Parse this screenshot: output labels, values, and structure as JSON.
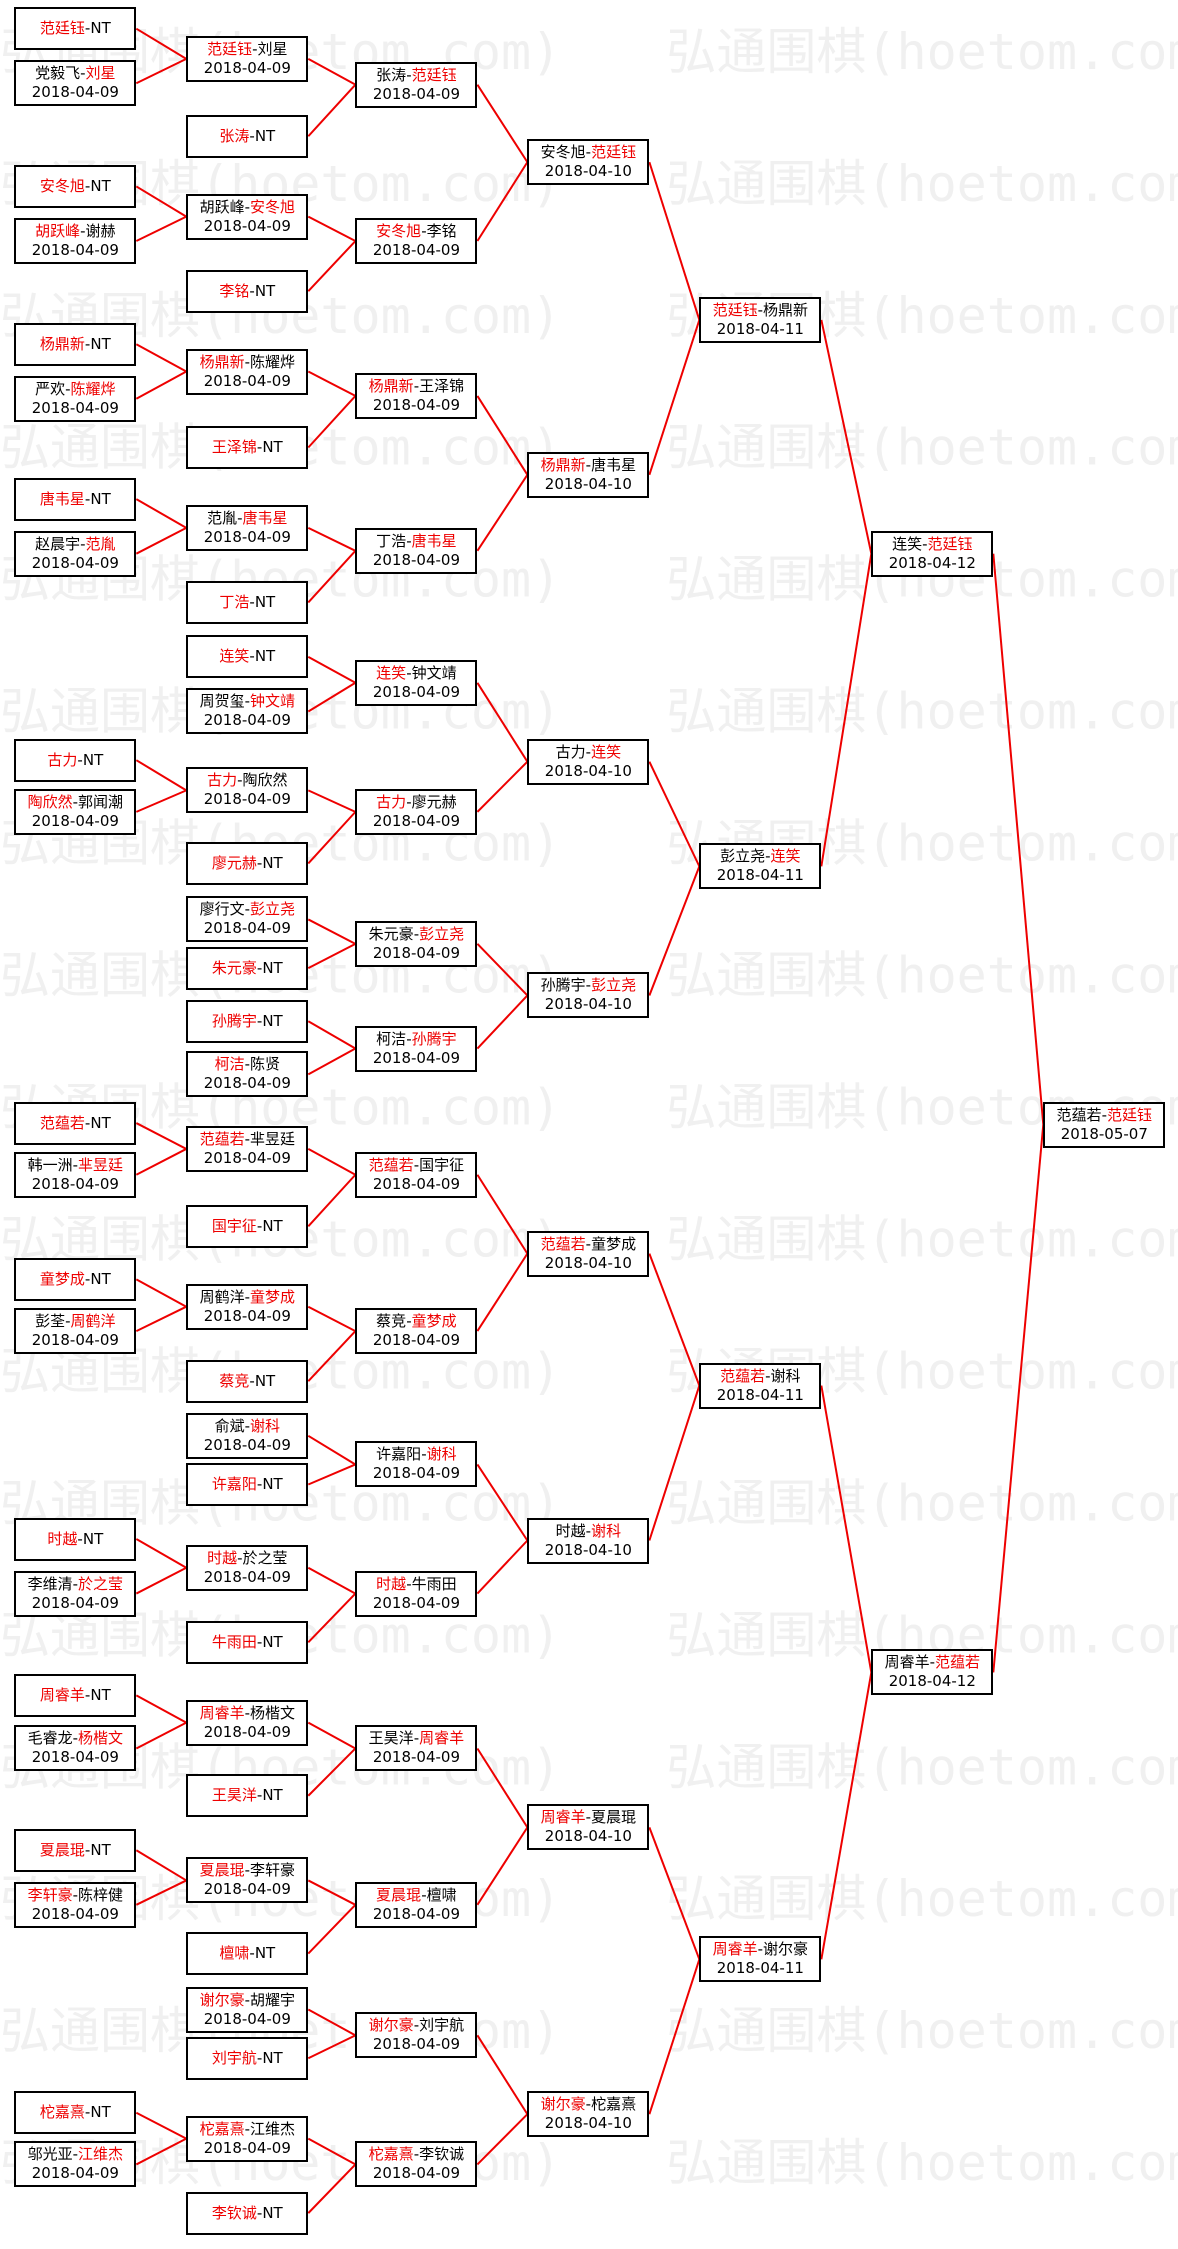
{
  "watermark": "弘通围棋(hoetom.com)",
  "rounds": [
    [
      {
        "players": [
          "范廷钰",
          "NT"
        ],
        "winner": 0
      },
      {
        "players": [
          "党毅飞",
          "刘星"
        ],
        "winner": 1,
        "date": "2018-04-09"
      },
      {
        "players": [
          "安冬旭",
          "NT"
        ],
        "winner": 0
      },
      {
        "players": [
          "胡跃峰",
          "谢赫"
        ],
        "winner": 0,
        "date": "2018-04-09"
      },
      {
        "players": [
          "杨鼎新",
          "NT"
        ],
        "winner": 0
      },
      {
        "players": [
          "严欢",
          "陈耀烨"
        ],
        "winner": 1,
        "date": "2018-04-09"
      },
      {
        "players": [
          "唐韦星",
          "NT"
        ],
        "winner": 0
      },
      {
        "players": [
          "赵晨宇",
          "范胤"
        ],
        "winner": 1,
        "date": "2018-04-09"
      },
      {
        "players": [
          "古力",
          "NT"
        ],
        "winner": 0
      },
      {
        "players": [
          "陶欣然",
          "郭闻潮"
        ],
        "winner": 0,
        "date": "2018-04-09"
      },
      {
        "players": [
          "范蕴若",
          "NT"
        ],
        "winner": 0
      },
      {
        "players": [
          "韩一洲",
          "芈昱廷"
        ],
        "winner": 1,
        "date": "2018-04-09"
      },
      {
        "players": [
          "童梦成",
          "NT"
        ],
        "winner": 0
      },
      {
        "players": [
          "彭荃",
          "周鹤洋"
        ],
        "winner": 1,
        "date": "2018-04-09"
      },
      {
        "players": [
          "时越",
          "NT"
        ],
        "winner": 0
      },
      {
        "players": [
          "李维清",
          "於之莹"
        ],
        "winner": 1,
        "date": "2018-04-09"
      },
      {
        "players": [
          "周睿羊",
          "NT"
        ],
        "winner": 0
      },
      {
        "players": [
          "毛睿龙",
          "杨楷文"
        ],
        "winner": 1,
        "date": "2018-04-09"
      },
      {
        "players": [
          "夏晨琨",
          "NT"
        ],
        "winner": 0
      },
      {
        "players": [
          "李轩豪",
          "陈梓健"
        ],
        "winner": 0,
        "date": "2018-04-09"
      },
      {
        "players": [
          "柁嘉熹",
          "NT"
        ],
        "winner": 0
      },
      {
        "players": [
          "邬光亚",
          "江维杰"
        ],
        "winner": 1,
        "date": "2018-04-09"
      }
    ],
    [
      {
        "players": [
          "范廷钰",
          "刘星"
        ],
        "winner": 0,
        "date": "2018-04-09"
      },
      {
        "players": [
          "张涛",
          "NT"
        ],
        "winner": 0
      },
      {
        "players": [
          "胡跃峰",
          "安冬旭"
        ],
        "winner": 1,
        "date": "2018-04-09"
      },
      {
        "players": [
          "李铭",
          "NT"
        ],
        "winner": 0
      },
      {
        "players": [
          "杨鼎新",
          "陈耀烨"
        ],
        "winner": 0,
        "date": "2018-04-09"
      },
      {
        "players": [
          "王泽锦",
          "NT"
        ],
        "winner": 0
      },
      {
        "players": [
          "范胤",
          "唐韦星"
        ],
        "winner": 1,
        "date": "2018-04-09"
      },
      {
        "players": [
          "丁浩",
          "NT"
        ],
        "winner": 0
      },
      {
        "players": [
          "连笑",
          "NT"
        ],
        "winner": 0
      },
      {
        "players": [
          "周贺玺",
          "钟文靖"
        ],
        "winner": 1,
        "date": "2018-04-09"
      },
      {
        "players": [
          "古力",
          "陶欣然"
        ],
        "winner": 0,
        "date": "2018-04-09"
      },
      {
        "players": [
          "廖元赫",
          "NT"
        ],
        "winner": 0
      },
      {
        "players": [
          "廖行文",
          "彭立尧"
        ],
        "winner": 1,
        "date": "2018-04-09"
      },
      {
        "players": [
          "朱元豪",
          "NT"
        ],
        "winner": 0
      },
      {
        "players": [
          "孙腾宇",
          "NT"
        ],
        "winner": 0
      },
      {
        "players": [
          "柯洁",
          "陈贤"
        ],
        "winner": 0,
        "date": "2018-04-09"
      },
      {
        "players": [
          "范蕴若",
          "芈昱廷"
        ],
        "winner": 0,
        "date": "2018-04-09"
      },
      {
        "players": [
          "国宇征",
          "NT"
        ],
        "winner": 0
      },
      {
        "players": [
          "周鹤洋",
          "童梦成"
        ],
        "winner": 1,
        "date": "2018-04-09"
      },
      {
        "players": [
          "蔡竞",
          "NT"
        ],
        "winner": 0
      },
      {
        "players": [
          "俞斌",
          "谢科"
        ],
        "winner": 1,
        "date": "2018-04-09"
      },
      {
        "players": [
          "许嘉阳",
          "NT"
        ],
        "winner": 0
      },
      {
        "players": [
          "时越",
          "於之莹"
        ],
        "winner": 0,
        "date": "2018-04-09"
      },
      {
        "players": [
          "牛雨田",
          "NT"
        ],
        "winner": 0
      },
      {
        "players": [
          "周睿羊",
          "杨楷文"
        ],
        "winner": 0,
        "date": "2018-04-09"
      },
      {
        "players": [
          "王昊洋",
          "NT"
        ],
        "winner": 0
      },
      {
        "players": [
          "夏晨琨",
          "李轩豪"
        ],
        "winner": 0,
        "date": "2018-04-09"
      },
      {
        "players": [
          "檀啸",
          "NT"
        ],
        "winner": 0
      },
      {
        "players": [
          "谢尔豪",
          "胡耀宇"
        ],
        "winner": 0,
        "date": "2018-04-09"
      },
      {
        "players": [
          "刘宇航",
          "NT"
        ],
        "winner": 0
      },
      {
        "players": [
          "柁嘉熹",
          "江维杰"
        ],
        "winner": 0,
        "date": "2018-04-09"
      },
      {
        "players": [
          "李钦诚",
          "NT"
        ],
        "winner": 0
      }
    ],
    [
      {
        "players": [
          "张涛",
          "范廷钰"
        ],
        "winner": 1,
        "date": "2018-04-09"
      },
      {
        "players": [
          "安冬旭",
          "李铭"
        ],
        "winner": 0,
        "date": "2018-04-09"
      },
      {
        "players": [
          "杨鼎新",
          "王泽锦"
        ],
        "winner": 0,
        "date": "2018-04-09"
      },
      {
        "players": [
          "丁浩",
          "唐韦星"
        ],
        "winner": 1,
        "date": "2018-04-09"
      },
      {
        "players": [
          "连笑",
          "钟文靖"
        ],
        "winner": 0,
        "date": "2018-04-09"
      },
      {
        "players": [
          "古力",
          "廖元赫"
        ],
        "winner": 0,
        "date": "2018-04-09"
      },
      {
        "players": [
          "朱元豪",
          "彭立尧"
        ],
        "winner": 1,
        "date": "2018-04-09"
      },
      {
        "players": [
          "柯洁",
          "孙腾宇"
        ],
        "winner": 1,
        "date": "2018-04-09"
      },
      {
        "players": [
          "范蕴若",
          "国宇征"
        ],
        "winner": 0,
        "date": "2018-04-09"
      },
      {
        "players": [
          "蔡竞",
          "童梦成"
        ],
        "winner": 1,
        "date": "2018-04-09"
      },
      {
        "players": [
          "许嘉阳",
          "谢科"
        ],
        "winner": 1,
        "date": "2018-04-09"
      },
      {
        "players": [
          "时越",
          "牛雨田"
        ],
        "winner": 0,
        "date": "2018-04-09"
      },
      {
        "players": [
          "王昊洋",
          "周睿羊"
        ],
        "winner": 1,
        "date": "2018-04-09"
      },
      {
        "players": [
          "夏晨琨",
          "檀啸"
        ],
        "winner": 0,
        "date": "2018-04-09"
      },
      {
        "players": [
          "谢尔豪",
          "刘宇航"
        ],
        "winner": 0,
        "date": "2018-04-09"
      },
      {
        "players": [
          "柁嘉熹",
          "李钦诚"
        ],
        "winner": 0,
        "date": "2018-04-09"
      }
    ],
    [
      {
        "players": [
          "安冬旭",
          "范廷钰"
        ],
        "winner": 1,
        "date": "2018-04-10"
      },
      {
        "players": [
          "杨鼎新",
          "唐韦星"
        ],
        "winner": 0,
        "date": "2018-04-10"
      },
      {
        "players": [
          "古力",
          "连笑"
        ],
        "winner": 1,
        "date": "2018-04-10"
      },
      {
        "players": [
          "孙腾宇",
          "彭立尧"
        ],
        "winner": 1,
        "date": "2018-04-10"
      },
      {
        "players": [
          "范蕴若",
          "童梦成"
        ],
        "winner": 0,
        "date": "2018-04-10"
      },
      {
        "players": [
          "时越",
          "谢科"
        ],
        "winner": 1,
        "date": "2018-04-10"
      },
      {
        "players": [
          "周睿羊",
          "夏晨琨"
        ],
        "winner": 0,
        "date": "2018-04-10"
      },
      {
        "players": [
          "谢尔豪",
          "柁嘉熹"
        ],
        "winner": 0,
        "date": "2018-04-10"
      }
    ],
    [
      {
        "players": [
          "范廷钰",
          "杨鼎新"
        ],
        "winner": 0,
        "date": "2018-04-11"
      },
      {
        "players": [
          "彭立尧",
          "连笑"
        ],
        "winner": 1,
        "date": "2018-04-11"
      },
      {
        "players": [
          "范蕴若",
          "谢科"
        ],
        "winner": 0,
        "date": "2018-04-11"
      },
      {
        "players": [
          "周睿羊",
          "谢尔豪"
        ],
        "winner": 0,
        "date": "2018-04-11"
      }
    ],
    [
      {
        "players": [
          "连笑",
          "范廷钰"
        ],
        "winner": 1,
        "date": "2018-04-12"
      },
      {
        "players": [
          "周睿羊",
          "范蕴若"
        ],
        "winner": 1,
        "date": "2018-04-12"
      }
    ],
    [
      {
        "players": [
          "范蕴若",
          "范廷钰"
        ],
        "winner": 1,
        "date": "2018-05-07"
      }
    ]
  ]
}
